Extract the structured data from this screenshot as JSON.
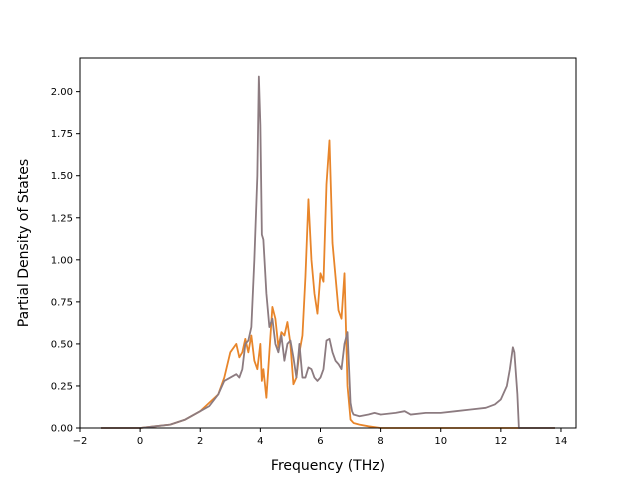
{
  "chart_data": {
    "type": "line",
    "title": "",
    "xlabel": "Frequency (THz)",
    "ylabel": "Partial Density of States",
    "xlim": [
      -2,
      14.5
    ],
    "ylim": [
      0,
      2.2
    ],
    "xticks": [
      -2,
      0,
      2,
      4,
      6,
      8,
      10,
      12,
      14
    ],
    "yticks": [
      0.0,
      0.25,
      0.5,
      0.75,
      1.0,
      1.25,
      1.5,
      1.75,
      2.0
    ],
    "xtick_labels": [
      "−2",
      "0",
      "2",
      "4",
      "6",
      "8",
      "10",
      "12",
      "14"
    ],
    "ytick_labels": [
      "0.00",
      "0.25",
      "0.50",
      "0.75",
      "1.00",
      "1.25",
      "1.50",
      "1.75",
      "2.00"
    ],
    "grid": false,
    "legend": "none",
    "series": [
      {
        "color": "#e8852a",
        "x": [
          -1.3,
          0.0,
          0.5,
          1.0,
          1.5,
          2.0,
          2.3,
          2.6,
          2.8,
          3.0,
          3.2,
          3.3,
          3.4,
          3.5,
          3.6,
          3.7,
          3.8,
          3.9,
          4.0,
          4.05,
          4.1,
          4.2,
          4.3,
          4.4,
          4.5,
          4.6,
          4.7,
          4.8,
          4.9,
          5.0,
          5.1,
          5.2,
          5.3,
          5.4,
          5.5,
          5.6,
          5.7,
          5.8,
          5.9,
          6.0,
          6.1,
          6.2,
          6.3,
          6.4,
          6.5,
          6.6,
          6.7,
          6.8,
          6.9,
          7.0,
          7.05,
          7.1,
          7.3,
          7.6,
          8.0,
          9.0,
          10.0,
          11.0,
          12.0,
          12.3,
          12.5,
          12.6,
          13.8
        ],
        "y": [
          0.0,
          0.0,
          0.01,
          0.02,
          0.05,
          0.1,
          0.15,
          0.2,
          0.3,
          0.45,
          0.5,
          0.42,
          0.45,
          0.53,
          0.45,
          0.55,
          0.4,
          0.35,
          0.5,
          0.28,
          0.35,
          0.18,
          0.45,
          0.72,
          0.65,
          0.48,
          0.57,
          0.55,
          0.63,
          0.5,
          0.26,
          0.3,
          0.45,
          0.55,
          0.9,
          1.36,
          1.0,
          0.8,
          0.68,
          0.92,
          0.87,
          1.45,
          1.71,
          1.1,
          0.9,
          0.7,
          0.65,
          0.92,
          0.25,
          0.05,
          0.04,
          0.03,
          0.02,
          0.01,
          0.0,
          0.0,
          0.0,
          0.0,
          0.0,
          0.0,
          0.0,
          0.0,
          0.0
        ]
      },
      {
        "color": "#8c7b80",
        "x": [
          -1.3,
          0.0,
          0.5,
          1.0,
          1.5,
          2.0,
          2.3,
          2.6,
          2.8,
          3.0,
          3.2,
          3.3,
          3.4,
          3.5,
          3.6,
          3.7,
          3.8,
          3.9,
          3.95,
          4.0,
          4.05,
          4.1,
          4.2,
          4.3,
          4.4,
          4.5,
          4.6,
          4.7,
          4.8,
          4.9,
          5.0,
          5.1,
          5.2,
          5.3,
          5.4,
          5.5,
          5.6,
          5.7,
          5.8,
          5.9,
          6.0,
          6.1,
          6.2,
          6.3,
          6.4,
          6.5,
          6.6,
          6.7,
          6.8,
          6.9,
          7.0,
          7.05,
          7.1,
          7.3,
          7.6,
          7.8,
          8.0,
          8.5,
          8.8,
          9.0,
          9.5,
          10.0,
          10.5,
          11.0,
          11.5,
          11.8,
          12.0,
          12.2,
          12.3,
          12.4,
          12.45,
          12.55,
          12.6,
          13.8
        ],
        "y": [
          0.0,
          0.0,
          0.01,
          0.02,
          0.05,
          0.1,
          0.13,
          0.2,
          0.28,
          0.3,
          0.32,
          0.3,
          0.35,
          0.5,
          0.52,
          0.6,
          1.0,
          1.5,
          2.09,
          1.8,
          1.15,
          1.12,
          0.8,
          0.6,
          0.65,
          0.5,
          0.45,
          0.55,
          0.4,
          0.5,
          0.52,
          0.42,
          0.3,
          0.5,
          0.3,
          0.3,
          0.36,
          0.35,
          0.3,
          0.28,
          0.3,
          0.35,
          0.52,
          0.53,
          0.45,
          0.4,
          0.38,
          0.35,
          0.5,
          0.57,
          0.15,
          0.1,
          0.08,
          0.07,
          0.08,
          0.09,
          0.08,
          0.09,
          0.1,
          0.08,
          0.09,
          0.09,
          0.1,
          0.11,
          0.12,
          0.14,
          0.17,
          0.25,
          0.35,
          0.48,
          0.45,
          0.2,
          0.0,
          0.0
        ]
      }
    ]
  }
}
